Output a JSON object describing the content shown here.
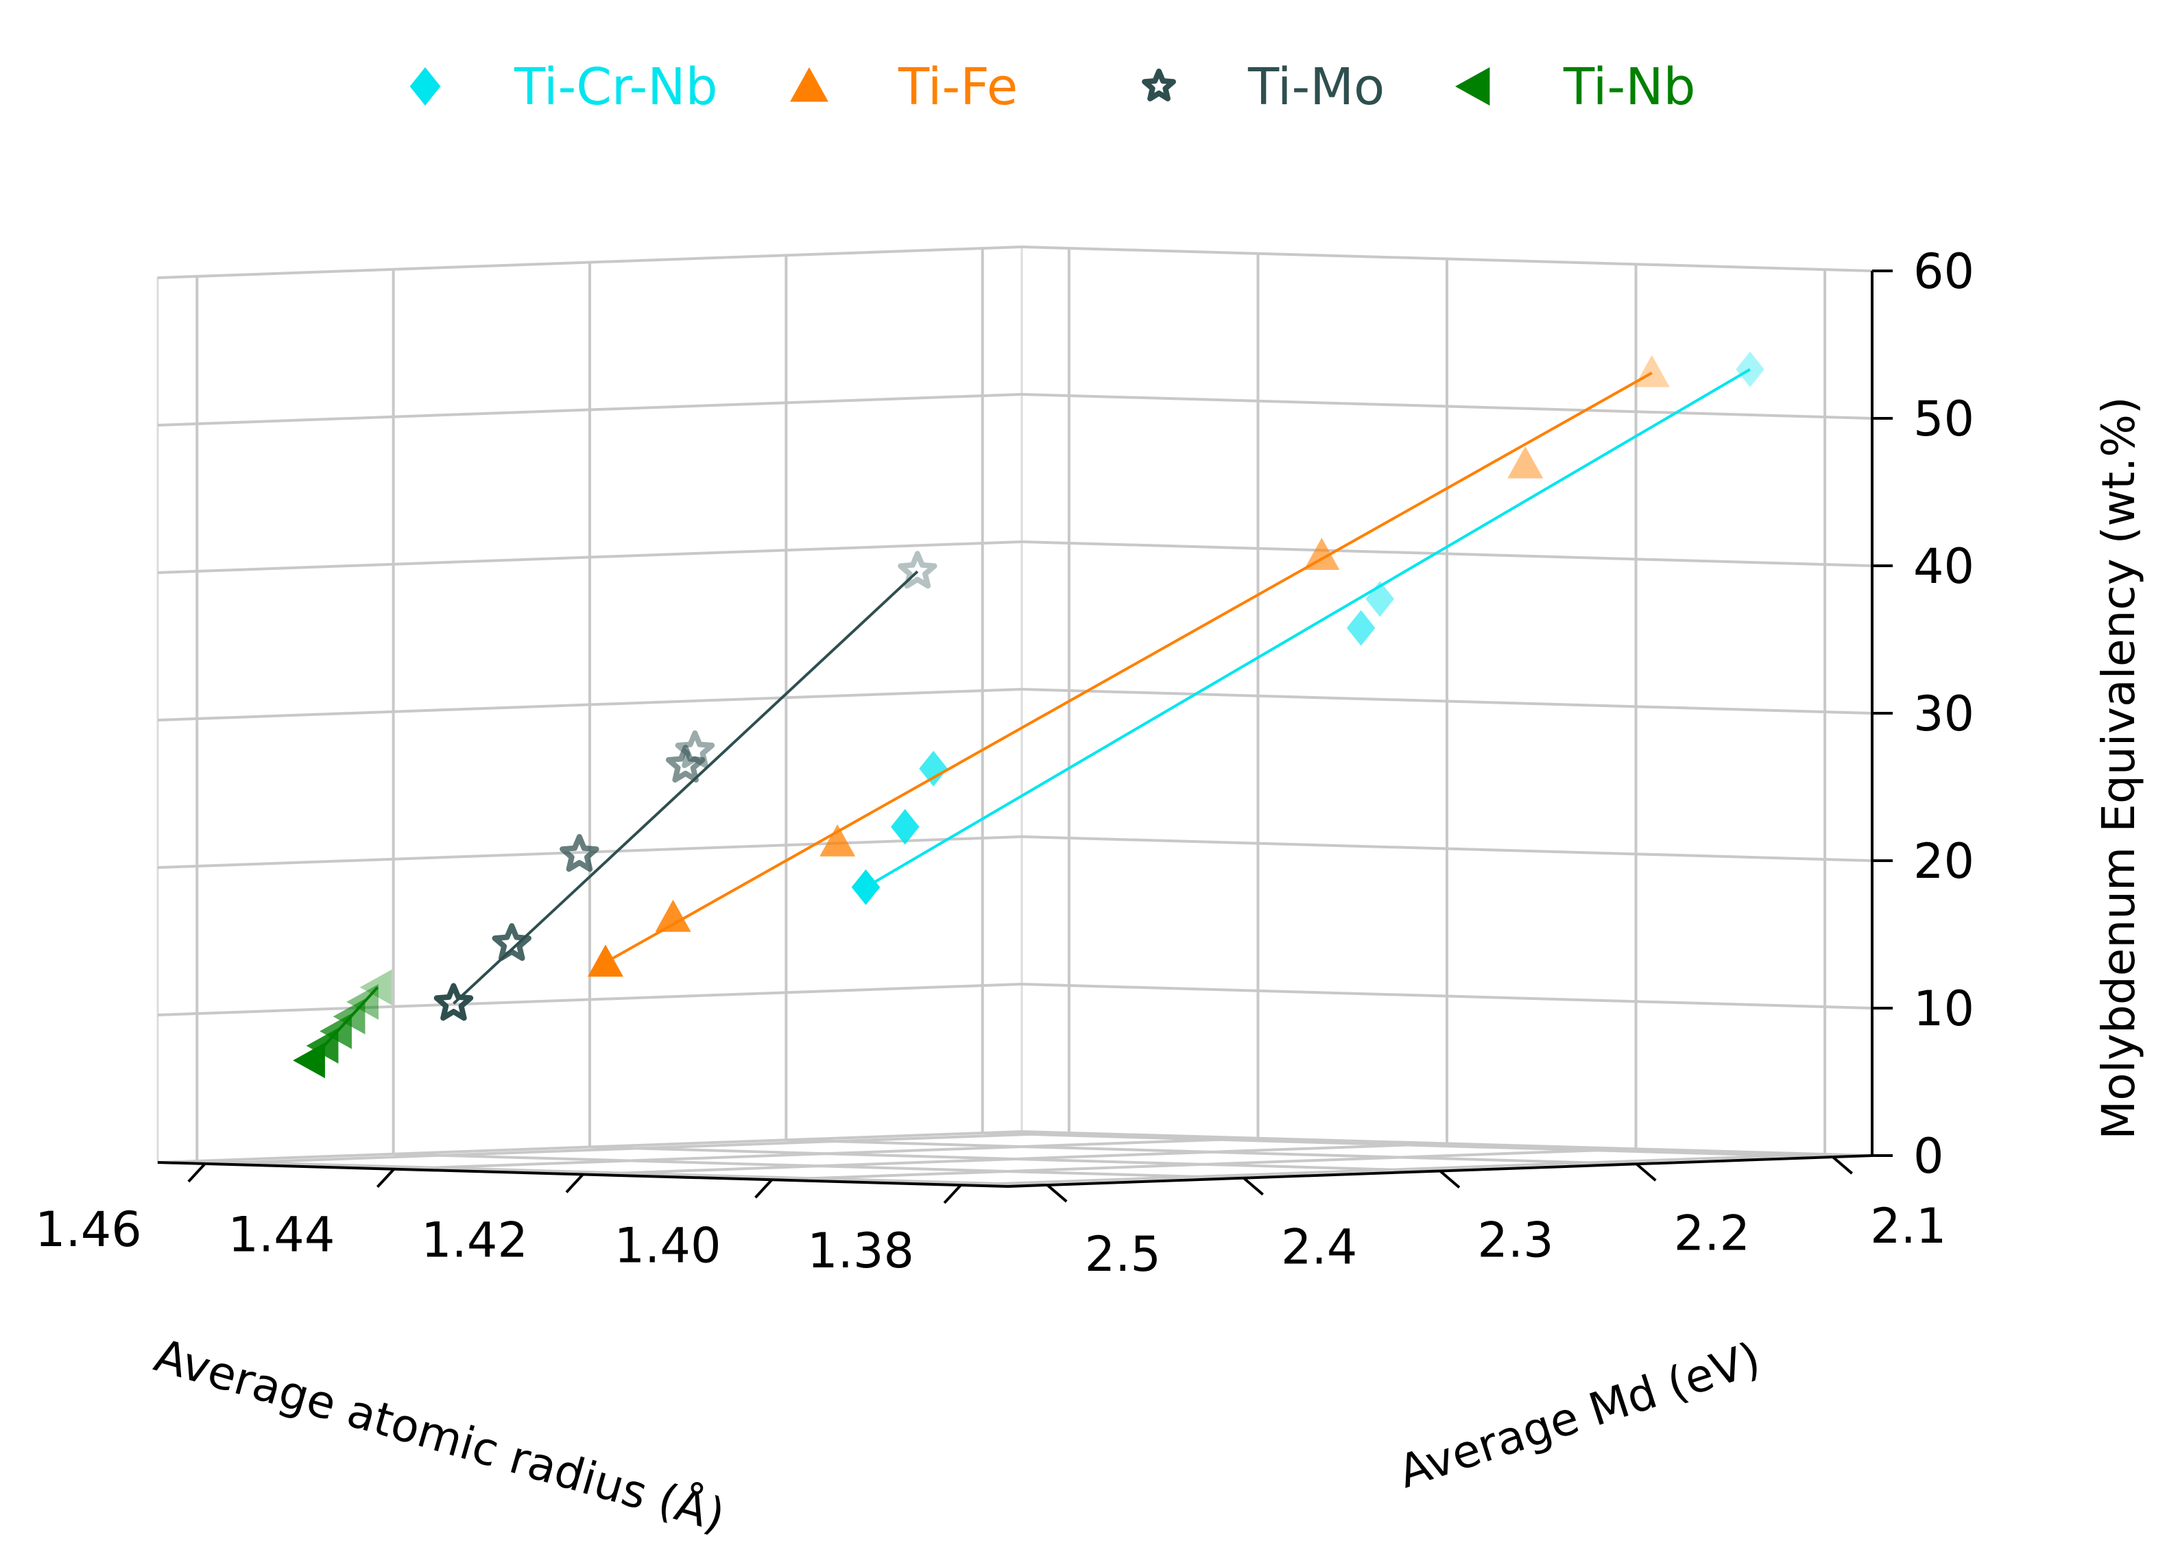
{
  "chart_data": {
    "type": "scatter3d",
    "legend": {
      "placement": "top-center",
      "entries": [
        {
          "label": "Ti-Cr-Nb",
          "marker": "diamond",
          "color": "#00e5ee"
        },
        {
          "label": "Ti-Fe",
          "marker": "triangle-up",
          "color": "#ff8000"
        },
        {
          "label": "Ti-Mo",
          "marker": "star",
          "color": "#2f4f4f"
        },
        {
          "label": "Ti-Nb",
          "marker": "triangle-left",
          "color": "#008000"
        }
      ]
    },
    "xlabel": "Average atomic radius (Å)",
    "ylabel": "Average Md (eV)",
    "zlabel": "Molybdenum Equivalency (wt.%)",
    "x_ticks": [
      "1.46",
      "1.44",
      "1.42",
      "1.40",
      "1.38"
    ],
    "y_ticks": [
      "2.5",
      "2.4",
      "2.3",
      "2.2",
      "2.1"
    ],
    "z_ticks": [
      "0",
      "10",
      "20",
      "30",
      "40",
      "50",
      "60"
    ],
    "xlim": [
      1.375,
      1.465
    ],
    "ylim": [
      2.08,
      2.52
    ],
    "zlim": [
      0,
      60
    ],
    "grid": true,
    "series": [
      {
        "name": "Ti-Cr-Nb",
        "color": "#00e5ee",
        "marker": "diamond",
        "points": [
          [
            1.415,
            2.4,
            19.0
          ],
          [
            1.415,
            2.38,
            23.0
          ],
          [
            1.412,
            2.38,
            27.0
          ],
          [
            1.4,
            2.22,
            36.0
          ],
          [
            1.398,
            2.22,
            38.0
          ],
          [
            1.39,
            2.07,
            53.0
          ]
        ]
      },
      {
        "name": "Ti-Fe",
        "color": "#ff8000",
        "marker": "triangle-up",
        "points": [
          [
            1.428,
            2.47,
            14.0
          ],
          [
            1.425,
            2.45,
            17.0
          ],
          [
            1.418,
            2.4,
            22.0
          ],
          [
            1.4,
            2.24,
            41.0
          ],
          [
            1.393,
            2.17,
            47.0
          ],
          [
            1.39,
            2.12,
            53.0
          ]
        ]
      },
      {
        "name": "Ti-Mo",
        "color": "#2f4f4f",
        "marker": "star",
        "points": [
          [
            1.442,
            2.48,
            11.0
          ],
          [
            1.44,
            2.46,
            15.0
          ],
          [
            1.437,
            2.44,
            21.0
          ],
          [
            1.432,
            2.41,
            27.0
          ],
          [
            1.431,
            2.41,
            28.0
          ],
          [
            1.422,
            2.34,
            40.0
          ]
        ]
      },
      {
        "name": "Ti-Nb",
        "color": "#008000",
        "marker": "triangle-left",
        "points": [
          [
            1.454,
            2.495,
            7.0
          ],
          [
            1.453,
            2.493,
            8.0
          ],
          [
            1.452,
            2.491,
            9.0
          ],
          [
            1.451,
            2.489,
            10.0
          ],
          [
            1.45,
            2.487,
            11.0
          ],
          [
            1.449,
            2.485,
            12.0
          ]
        ]
      }
    ]
  }
}
